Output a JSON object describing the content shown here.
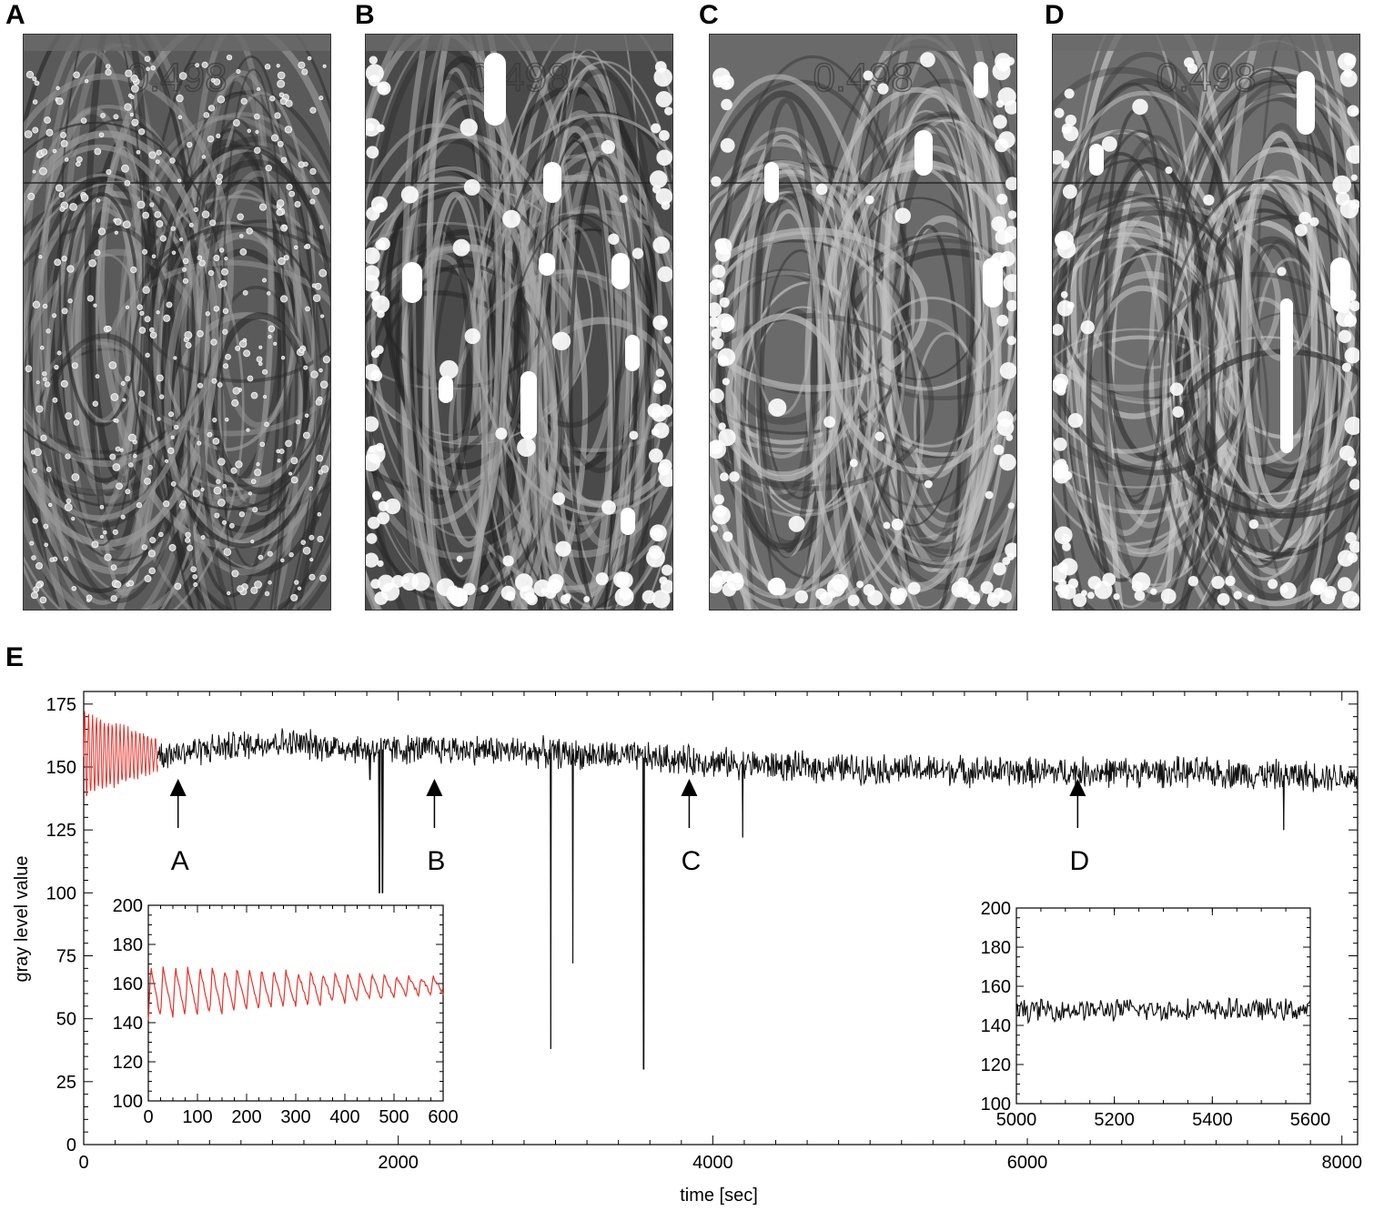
{
  "panels": {
    "a": {
      "letter": "A",
      "label": "0.498"
    },
    "b": {
      "letter": "B",
      "label": "0.498"
    },
    "c": {
      "letter": "C",
      "label": "0.498"
    },
    "d": {
      "letter": "D",
      "label": "0.498"
    },
    "e": {
      "letter": "E"
    }
  },
  "colors": {
    "early_series": "#e8322a",
    "late_series": "#111111",
    "axis": "#000000"
  },
  "chart_data": [
    {
      "type": "line",
      "title": "",
      "xlabel": "time [sec]",
      "ylabel": "gray level value",
      "xlim": [
        0,
        8100
      ],
      "ylim": [
        0,
        180
      ],
      "xticks": [
        0,
        2000,
        4000,
        6000,
        8000
      ],
      "yticks": [
        0,
        25,
        50,
        75,
        100,
        125,
        150,
        175
      ],
      "grid": false,
      "series": [
        {
          "color": "#e8322a",
          "x_range": [
            0,
            470
          ],
          "baseline": 155,
          "oscillation_period": 25,
          "amplitude_start": 16,
          "amplitude_end": 6
        },
        {
          "color": "#111111",
          "x_range": [
            470,
            8100
          ],
          "mean_points": [
            [
              470,
              155
            ],
            [
              1200,
              160
            ],
            [
              1800,
              157
            ],
            [
              2500,
              157
            ],
            [
              3500,
              154
            ],
            [
              4500,
              150
            ],
            [
              6000,
              148
            ],
            [
              7000,
              148
            ],
            [
              8100,
              146
            ]
          ],
          "noise": 5
        }
      ],
      "spikes": [
        [
          1820,
          145
        ],
        [
          1880,
          100
        ],
        [
          1900,
          100
        ],
        [
          2970,
          38
        ],
        [
          3110,
          72
        ],
        [
          3560,
          30
        ],
        [
          4190,
          122
        ],
        [
          7630,
          125
        ]
      ],
      "annotations": [
        {
          "label": "A",
          "x": 600
        },
        {
          "label": "B",
          "x": 2230
        },
        {
          "label": "C",
          "x": 3850
        },
        {
          "label": "D",
          "x": 6320
        }
      ]
    },
    {
      "type": "line",
      "title": "",
      "xlim": [
        0,
        600
      ],
      "ylim": [
        100,
        200
      ],
      "xticks": [
        0,
        100,
        200,
        300,
        400,
        500,
        600
      ],
      "yticks": [
        100,
        120,
        140,
        160,
        180,
        200
      ],
      "series": [
        {
          "color": "#e8322a",
          "period": 25,
          "baseline": 152,
          "amplitude_start": 17,
          "amplitude_end": 5
        }
      ]
    },
    {
      "type": "line",
      "title": "",
      "xlim": [
        5000,
        5600
      ],
      "ylim": [
        100,
        200
      ],
      "xticks": [
        5000,
        5200,
        5400,
        5600
      ],
      "yticks": [
        100,
        120,
        140,
        160,
        180,
        200
      ],
      "series": [
        {
          "color": "#111111",
          "mean": 148,
          "noise": 6
        }
      ]
    }
  ]
}
